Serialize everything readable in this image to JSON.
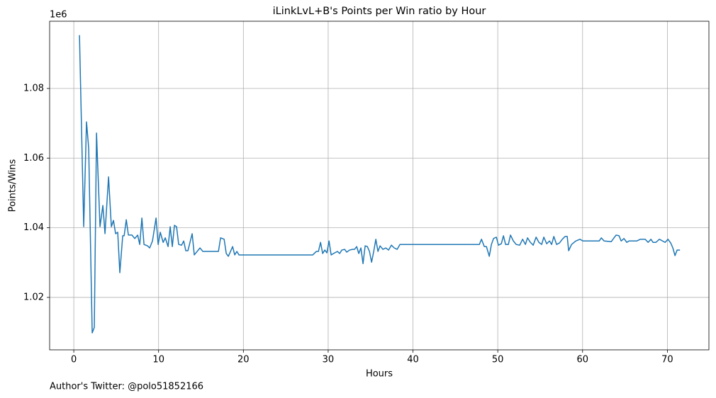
{
  "chart_data": {
    "type": "line",
    "title": "iLinkLvL+B's Points per Win ratio by Hour",
    "xlabel": "Hours",
    "ylabel": "Points/Wins",
    "y_offset_label": "1e6",
    "color": "#1f77b4",
    "grid": true,
    "xlim": [
      -2.85,
      74.9
    ],
    "ylim": [
      1.00494,
      1.0993
    ],
    "xticks": [
      0,
      10,
      20,
      30,
      40,
      50,
      60,
      70
    ],
    "yticks": [
      1.02,
      1.04,
      1.06,
      1.08
    ],
    "x": [
      0.67,
      1.17,
      1.5,
      1.76,
      2.17,
      2.42,
      2.68,
      3.09,
      3.43,
      3.68,
      4.1,
      4.43,
      4.68,
      4.93,
      5.18,
      5.43,
      5.77,
      5.94,
      6.19,
      6.44,
      6.86,
      7.19,
      7.53,
      7.78,
      8.03,
      8.28,
      8.7,
      8.95,
      9.28,
      9.7,
      9.95,
      10.2,
      10.54,
      10.79,
      11.12,
      11.37,
      11.62,
      11.87,
      12.12,
      12.37,
      12.71,
      12.96,
      13.21,
      13.46,
      13.96,
      14.21,
      14.88,
      15.22,
      17.06,
      17.31,
      17.73,
      17.98,
      18.23,
      18.73,
      18.98,
      19.23,
      19.48,
      28.18,
      28.6,
      28.85,
      29.1,
      29.35,
      29.6,
      29.85,
      30.1,
      30.35,
      30.77,
      31.1,
      31.35,
      31.61,
      31.94,
      32.19,
      32.53,
      32.86,
      33.11,
      33.36,
      33.61,
      33.86,
      34.11,
      34.36,
      34.62,
      34.87,
      35.12,
      35.37,
      35.62,
      35.87,
      36.12,
      36.45,
      36.79,
      37.12,
      37.46,
      37.79,
      38.13,
      38.46,
      47.83,
      48.08,
      48.41,
      48.66,
      49.0,
      49.25,
      49.5,
      49.83,
      50.08,
      50.42,
      50.67,
      50.92,
      51.25,
      51.5,
      51.84,
      52.17,
      52.59,
      52.93,
      53.26,
      53.51,
      53.85,
      54.18,
      54.52,
      54.85,
      55.18,
      55.43,
      55.77,
      56.1,
      56.35,
      56.61,
      56.94,
      57.27,
      57.61,
      57.94,
      58.19,
      58.36,
      58.7,
      59.2,
      59.7,
      60.03,
      61.96,
      62.21,
      62.54,
      63.38,
      63.71,
      63.96,
      64.3,
      64.55,
      64.88,
      65.22,
      65.47,
      66.39,
      66.81,
      67.39,
      67.73,
      68.06,
      68.31,
      68.65,
      69.06,
      69.73,
      70.07,
      70.4,
      70.65,
      70.9,
      71.15,
      71.49
    ],
    "values": [
      1.0953,
      1.0403,
      1.0704,
      1.0627,
      1.0098,
      1.0114,
      1.0672,
      1.0403,
      1.0464,
      1.0383,
      1.0546,
      1.0403,
      1.0421,
      1.0383,
      1.0387,
      1.0271,
      1.0377,
      1.0377,
      1.0423,
      1.0379,
      1.0379,
      1.0369,
      1.0379,
      1.0352,
      1.0428,
      1.0352,
      1.0348,
      1.0342,
      1.0362,
      1.0428,
      1.0352,
      1.0387,
      1.0358,
      1.0371,
      1.0346,
      1.0403,
      1.0346,
      1.0407,
      1.0403,
      1.0352,
      1.035,
      1.0362,
      1.0334,
      1.0334,
      1.0383,
      1.0322,
      1.0342,
      1.0332,
      1.0332,
      1.0371,
      1.0367,
      1.0326,
      1.0318,
      1.0346,
      1.0322,
      1.0332,
      1.0322,
      1.0322,
      1.0332,
      1.0332,
      1.0358,
      1.0326,
      1.0336,
      1.0328,
      1.0362,
      1.0322,
      1.0328,
      1.0332,
      1.0326,
      1.0336,
      1.0338,
      1.033,
      1.0336,
      1.0338,
      1.0338,
      1.0346,
      1.0326,
      1.0342,
      1.0297,
      1.0348,
      1.0346,
      1.0332,
      1.0301,
      1.0332,
      1.0367,
      1.0332,
      1.0348,
      1.0338,
      1.0342,
      1.0336,
      1.035,
      1.0342,
      1.0338,
      1.0352,
      1.0352,
      1.0367,
      1.0346,
      1.0346,
      1.0318,
      1.0352,
      1.0369,
      1.0373,
      1.035,
      1.0354,
      1.0377,
      1.0352,
      1.0352,
      1.0379,
      1.0362,
      1.0352,
      1.035,
      1.0367,
      1.0352,
      1.0371,
      1.0358,
      1.035,
      1.0373,
      1.0358,
      1.0352,
      1.0373,
      1.0354,
      1.0362,
      1.0352,
      1.0375,
      1.0352,
      1.0356,
      1.0367,
      1.0375,
      1.0375,
      1.0334,
      1.0352,
      1.0362,
      1.0367,
      1.0362,
      1.0362,
      1.0371,
      1.0362,
      1.036,
      1.0371,
      1.0379,
      1.0377,
      1.0362,
      1.0369,
      1.0358,
      1.0362,
      1.0362,
      1.0367,
      1.0367,
      1.0358,
      1.0367,
      1.0358,
      1.0358,
      1.0367,
      1.0358,
      1.0367,
      1.0356,
      1.0342,
      1.032,
      1.0336,
      1.0336
    ]
  },
  "footnote": "Author's Twitter: @polo51852166"
}
